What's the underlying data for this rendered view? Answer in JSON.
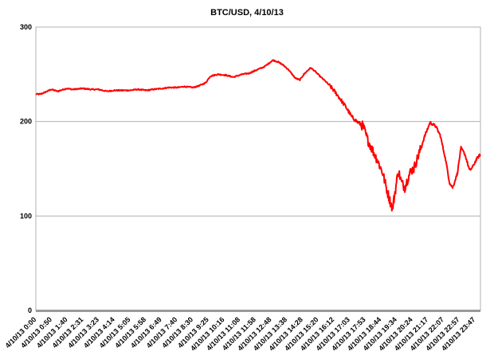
{
  "chart_data": {
    "type": "line",
    "title": "BTC/USD, 4/10/13",
    "xlabel": "",
    "ylabel": "",
    "ylim": [
      0,
      300
    ],
    "yticks": [
      0,
      100,
      200,
      300
    ],
    "grid": "horizontal",
    "line_color": "#ff0000",
    "x_tick_labels": [
      "4/10/13 0:00",
      "4/10/13 0:50",
      "4/10/13 1:40",
      "4/10/13 2:31",
      "4/10/13 3:23",
      "4/10/13 4:14",
      "4/10/13 5:05",
      "4/10/13 5:58",
      "4/10/13 6:49",
      "4/10/13 7:40",
      "4/10/13 8:30",
      "4/10/13 9:25",
      "4/10/13 10:16",
      "4/10/13 11:08",
      "4/10/13 11:58",
      "4/10/13 12:48",
      "4/10/13 13:38",
      "4/10/13 14:28",
      "4/10/13 15:20",
      "4/10/13 16:12",
      "4/10/13 17:03",
      "4/10/13 17:53",
      "4/10/13 18:44",
      "4/10/13 19:34",
      "4/10/13 20:24",
      "4/10/13 21:17",
      "4/10/13 22:07",
      "4/10/13 22:57",
      "4/10/13 23:47"
    ],
    "series": [
      {
        "x": [
          "0:00",
          "0:15",
          "0:30",
          "0:50",
          "1:10",
          "1:40",
          "2:00",
          "2:31",
          "3:00",
          "3:23",
          "3:50",
          "4:14",
          "4:40",
          "5:05",
          "5:30",
          "5:58",
          "6:20",
          "6:49",
          "7:10",
          "7:40",
          "8:00",
          "8:30",
          "8:50",
          "9:10",
          "9:25",
          "9:50",
          "10:16",
          "10:40",
          "11:08",
          "11:30",
          "11:58",
          "12:20",
          "12:48",
          "13:05",
          "13:20",
          "13:38",
          "14:00",
          "14:15",
          "14:28",
          "14:50",
          "15:05",
          "15:20",
          "15:40",
          "16:00",
          "16:12",
          "16:30",
          "16:45",
          "17:03",
          "17:20",
          "17:40",
          "17:53",
          "18:10",
          "18:25",
          "18:44",
          "18:55",
          "19:05",
          "19:15",
          "19:20",
          "19:34",
          "19:45",
          "19:55",
          "20:05",
          "20:15",
          "20:24",
          "20:40",
          "21:00",
          "21:17",
          "21:35",
          "21:50",
          "22:07",
          "22:20",
          "22:30",
          "22:45",
          "22:57",
          "23:10",
          "23:25",
          "23:35",
          "23:47",
          "23:59"
        ],
        "y": [
          229,
          229,
          231,
          234,
          232,
          235,
          234,
          235,
          234,
          234,
          232,
          233,
          233,
          233,
          234,
          233,
          234,
          235,
          236,
          236,
          237,
          236,
          238,
          241,
          248,
          250,
          249,
          247,
          250,
          251,
          255,
          258,
          265,
          263,
          260,
          255,
          246,
          244,
          250,
          257,
          253,
          248,
          242,
          235,
          230,
          222,
          215,
          205,
          200,
          195,
          182,
          170,
          160,
          145,
          130,
          118,
          108,
          118,
          148,
          135,
          130,
          140,
          148,
          150,
          165,
          185,
          199,
          195,
          185,
          160,
          135,
          130,
          145,
          172,
          165,
          148,
          152,
          160,
          165
        ]
      }
    ]
  }
}
